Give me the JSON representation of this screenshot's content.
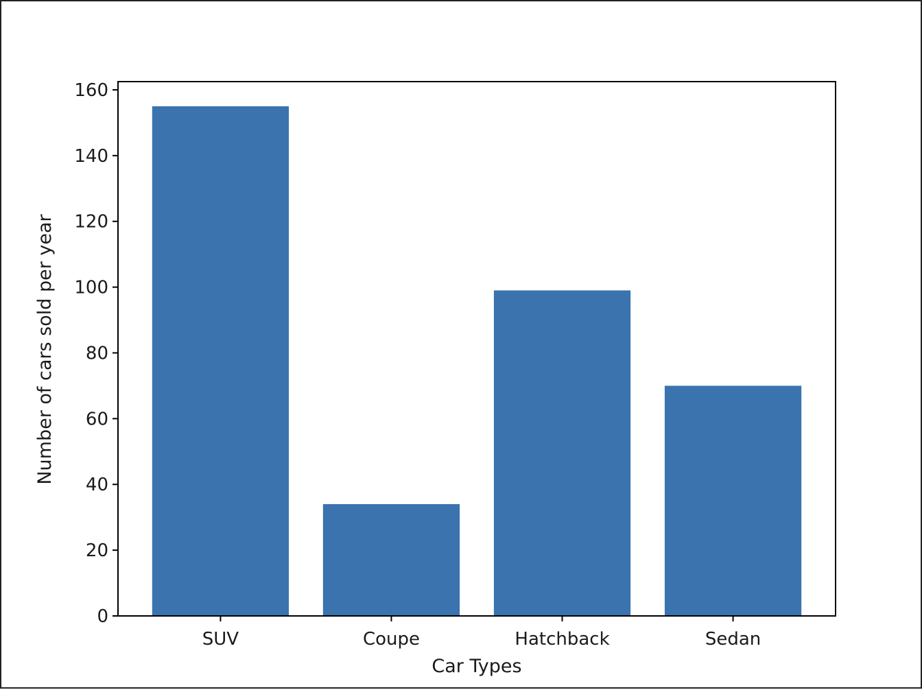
{
  "chart_data": {
    "type": "bar",
    "categories": [
      "SUV",
      "Coupe",
      "Hatchback",
      "Sedan"
    ],
    "values": [
      155,
      34,
      99,
      70
    ],
    "title": "",
    "xlabel": "Car Types",
    "ylabel": "Number of cars sold per year",
    "ylim": [
      0,
      162.5
    ],
    "yticks": [
      0,
      20,
      40,
      60,
      80,
      100,
      120,
      140,
      160
    ],
    "grid": false,
    "legend": "none",
    "bar_color": "#3a73ae"
  }
}
